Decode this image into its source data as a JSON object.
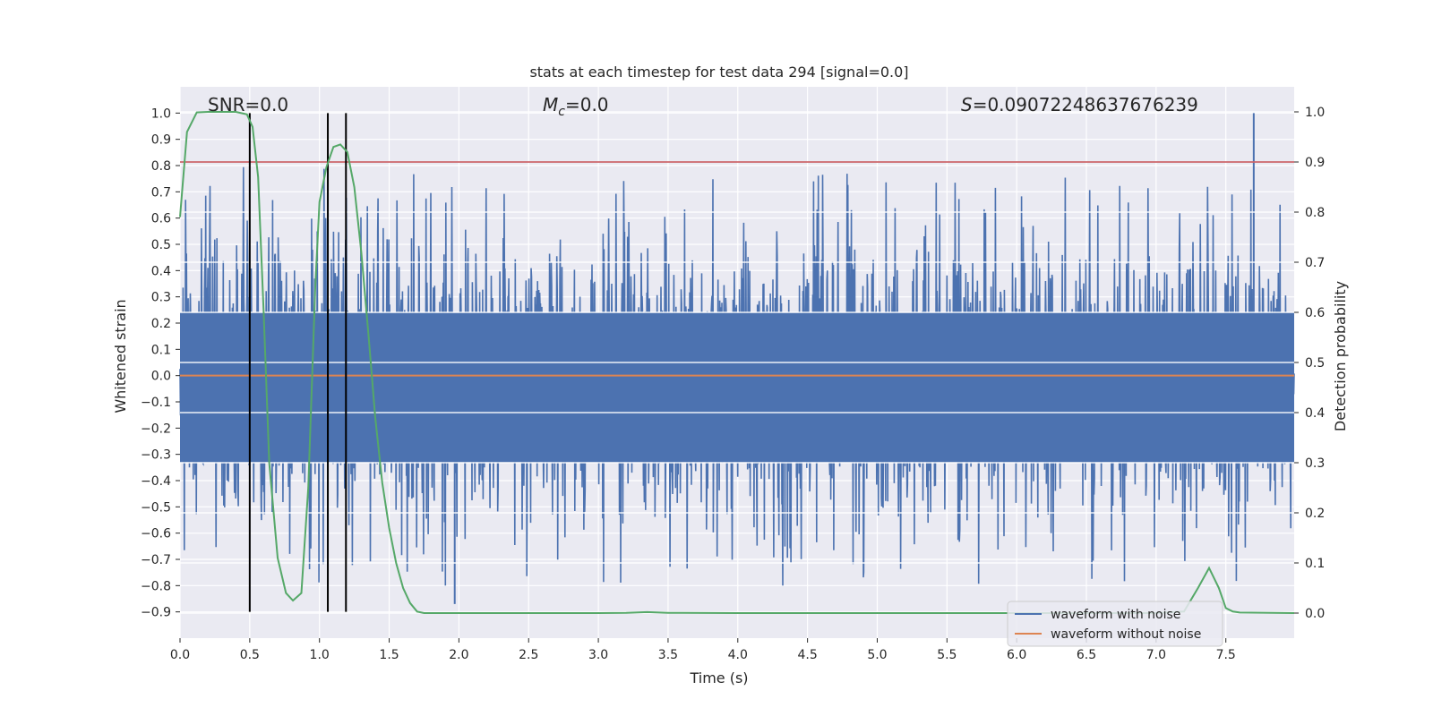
{
  "chart_data": {
    "type": "line",
    "title": "stats at each timestep for test data 294 [signal=0.0]",
    "xlabel": "Time (s)",
    "ylabel": "Whitened strain",
    "y2label": "Detection probability",
    "xlim": [
      0.0,
      7.99
    ],
    "ylim": [
      -1.0,
      1.1
    ],
    "y2lim": [
      -0.05,
      1.05
    ],
    "x_ticks": [
      "0.0",
      "0.5",
      "1.0",
      "1.5",
      "2.0",
      "2.5",
      "3.0",
      "3.5",
      "4.0",
      "4.5",
      "5.0",
      "5.5",
      "6.0",
      "6.5",
      "7.0",
      "7.5"
    ],
    "y_ticks": [
      "1.0",
      "0.9",
      "0.8",
      "0.7",
      "0.6",
      "0.5",
      "0.4",
      "0.3",
      "0.2",
      "0.1",
      "0.0",
      "−0.1",
      "−0.2",
      "−0.3",
      "−0.4",
      "−0.5",
      "−0.6",
      "−0.7",
      "−0.8",
      "−0.9"
    ],
    "y2_ticks": [
      "1.0",
      "0.9",
      "0.8",
      "0.7",
      "0.6",
      "0.5",
      "0.4",
      "0.3",
      "0.2",
      "0.1",
      "0.0"
    ],
    "grid": true,
    "legend_position": "lower-right",
    "annotations": {
      "snr_label": "SNR=0.0",
      "mc_symbol": "M",
      "mc_subscript": "c",
      "mc_value": "=0.0",
      "s_symbol": "S",
      "s_value": "=0.09072248637676239"
    },
    "series": [
      {
        "name": "waveform with noise",
        "axis": "left",
        "color": "#4c72b0",
        "description_stats": {
          "band_low": -0.33,
          "band_high": 0.24,
          "peak_max": 1.0,
          "peak_min": -0.88,
          "sample_rate_approx": 2048
        }
      },
      {
        "name": "waveform without noise",
        "axis": "left",
        "color": "#dd8452",
        "constant_value": 0.0
      },
      {
        "name": "detection probability",
        "axis": "right",
        "color": "#55a868",
        "x": [
          0.0,
          0.05,
          0.12,
          0.2,
          0.3,
          0.4,
          0.48,
          0.52,
          0.56,
          0.6,
          0.64,
          0.7,
          0.76,
          0.81,
          0.87,
          0.92,
          0.97,
          1.0,
          1.05,
          1.1,
          1.15,
          1.2,
          1.25,
          1.3,
          1.35,
          1.4,
          1.45,
          1.5,
          1.55,
          1.6,
          1.65,
          1.7,
          1.75,
          1.8,
          2.0,
          2.5,
          3.0,
          3.2,
          3.35,
          3.5,
          4.0,
          5.0,
          6.0,
          7.0,
          7.2,
          7.3,
          7.38,
          7.45,
          7.5,
          7.55,
          7.6,
          7.99
        ],
        "y": [
          0.79,
          0.96,
          0.999,
          1.0,
          1.0,
          1.0,
          0.995,
          0.97,
          0.87,
          0.6,
          0.3,
          0.11,
          0.04,
          0.025,
          0.04,
          0.25,
          0.65,
          0.82,
          0.89,
          0.93,
          0.935,
          0.92,
          0.85,
          0.72,
          0.56,
          0.39,
          0.26,
          0.17,
          0.1,
          0.05,
          0.02,
          0.003,
          0.0,
          0.0,
          0.0,
          0.0,
          0.0,
          0.0006,
          0.002,
          0.0006,
          0.0,
          0.0,
          0.0,
          0.0,
          0.003,
          0.05,
          0.09,
          0.05,
          0.01,
          0.003,
          0.001,
          0.0
        ]
      },
      {
        "name": "threshold",
        "axis": "right",
        "color": "#c44e52",
        "constant_value": 0.9
      },
      {
        "name": "vertical markers",
        "axis": "left",
        "color": "#000000",
        "x": [
          0.5,
          1.06,
          1.19
        ],
        "y_range": [
          -0.9,
          1.0
        ]
      }
    ]
  }
}
